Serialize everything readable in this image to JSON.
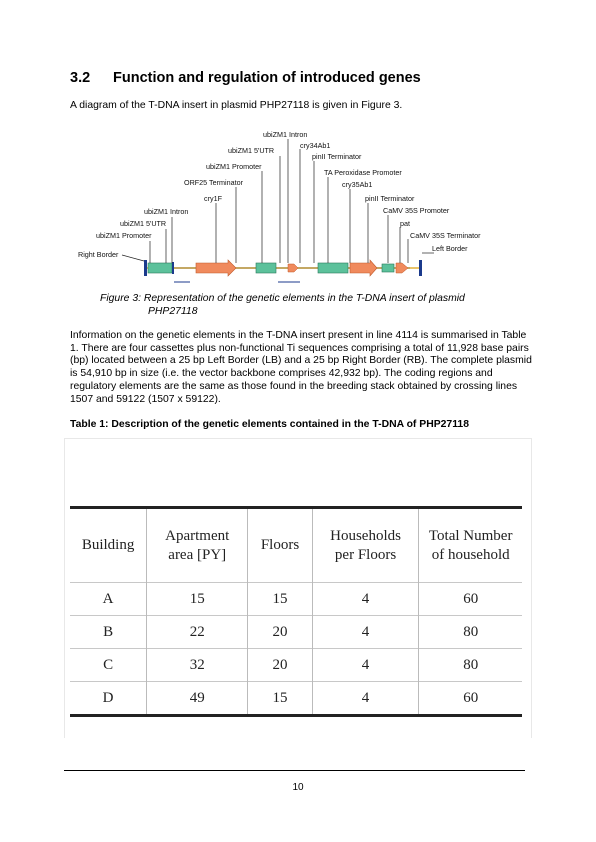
{
  "section": {
    "number": "3.2",
    "title": "Function and regulation of introduced genes"
  },
  "intro_text": "A diagram of the T-DNA insert in plasmid PHP27118 is given in Figure 3.",
  "diagram_labels": [
    "ubiZM1 Intron",
    "ubiZM1 5'UTR",
    "cry34Ab1",
    "pinII Terminator",
    "ubiZM1 Promoter",
    "TA Peroxidase Promoter",
    "ORF25 Terminator",
    "cry35Ab1",
    "cry1F",
    "pinII Terminator",
    "ubiZM1 Intron",
    "CaMV 35S Promoter",
    "ubiZM1 5'UTR",
    "pat",
    "ubiZM1 Promoter",
    "CaMV 35S Terminator",
    "Left Border",
    "Right Border"
  ],
  "figure_caption": {
    "line1": "Figure 3: Representation of the genetic elements in the T-DNA insert of plasmid",
    "line2": "PHP27118"
  },
  "body_text": "Information on the genetic elements in the T-DNA insert present in line 4114 is summarised in Table 1. There are four cassettes plus non-functional Ti sequences comprising a total of 11,928 base pairs (bp) located between a 25 bp Left Border (LB) and a 25 bp Right Border (RB). The complete plasmid is 54,910 bp in size (i.e. the vector backbone comprises 42,932 bp). The coding regions and regulatory elements are the same as those found in the breeding stack obtained by crossing lines 1507 and 59122 (1507 x 59122).",
  "table_title": "Table 1: Description of the genetic elements contained in the T-DNA of PHP27118",
  "table": {
    "headers": [
      "Building",
      "Apartment area [PY]",
      "Floors",
      "Households per Floors",
      "Total Number of household"
    ],
    "rows": [
      [
        "A",
        "15",
        "15",
        "4",
        "60"
      ],
      [
        "B",
        "22",
        "20",
        "4",
        "80"
      ],
      [
        "C",
        "32",
        "20",
        "4",
        "80"
      ],
      [
        "D",
        "49",
        "15",
        "4",
        "60"
      ]
    ]
  },
  "page_number": "10",
  "colors": {
    "green_element": "#5cc19b",
    "orange_element": "#f08a5d",
    "backbone": "#e9c46a",
    "blue_marker": "#1b3a8c"
  }
}
